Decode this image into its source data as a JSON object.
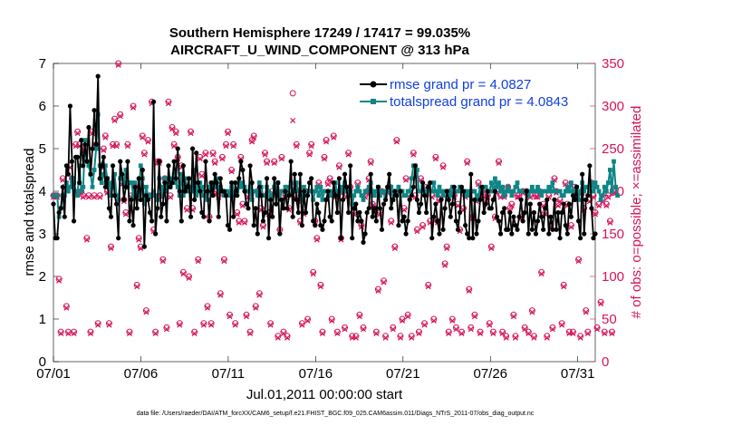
{
  "chart_data": {
    "type": "line",
    "title_line1": "Southern Hemisphere 17249 / 17417 = 99.035%",
    "title_line2": "AIRCRAFT_U_WIND_COMPONENT @ 313 hPa",
    "xlabel": "Jul.01,2011 00:00:00 start",
    "ylabel_left": "rmse and totalspread",
    "ylabel_right": "# of obs: o=possible; ×=assimilated",
    "xlim": [
      1,
      32
    ],
    "ylim_left": [
      0,
      7
    ],
    "ylim_right": [
      0,
      350
    ],
    "x_ticks": [
      1,
      6,
      11,
      16,
      21,
      26,
      31
    ],
    "x_tick_labels": [
      "07/01",
      "07/06",
      "07/11",
      "07/16",
      "07/21",
      "07/26",
      "07/31"
    ],
    "y_left_ticks": [
      "0",
      "1",
      "2",
      "3",
      "4",
      "5",
      "6",
      "7"
    ],
    "y_right_ticks": [
      "0",
      "50",
      "100",
      "150",
      "200",
      "250",
      "300",
      "350"
    ],
    "footnote": "data file: /Users/raeder/DAI/ATM_forcXX/CAM6_setup/f.e21.FHIST_BGC.f09_025.CAM6assim.011/Diags_NTrS_2011-07/obs_diag_output.nc",
    "colors": {
      "rmse": "#000000",
      "spread": "#0f8585",
      "obs": "#d6145a",
      "legend_text": "#1240e0"
    },
    "series": [
      {
        "name": "rmse",
        "legend": "rmse grand pr = 4.0827",
        "axis": "left",
        "values": [
          3.7,
          2.9,
          2.9,
          3.5,
          3.6,
          4.1,
          3.4,
          4.6,
          4.4,
          6.0,
          4.7,
          3.3,
          4.8,
          4.8,
          4.2,
          5.2,
          4.6,
          5.1,
          4.7,
          5.5,
          4.4,
          5.0,
          5.9,
          5.1,
          6.7,
          4.3,
          4.6,
          4.8,
          4.1,
          4.3,
          3.6,
          3.4,
          4.6,
          3.9,
          3.7,
          2.9,
          4.7,
          4.4,
          3.8,
          4.1,
          4.7,
          3.3,
          3.8,
          3.2,
          4.1,
          3.6,
          4.3,
          3.8,
          4.5,
          2.7,
          3.9,
          3.8,
          3.5,
          3.3,
          6.1,
          3.0,
          3.6,
          4.7,
          3.4,
          3.7,
          4.2,
          3.3,
          4.6,
          4.1,
          4.2,
          4.7,
          4.3,
          5.0,
          4.0,
          3.3,
          4.6,
          4.0,
          4.1,
          4.3,
          3.4,
          5.0,
          3.8,
          4.9,
          4.2,
          4.0,
          3.5,
          3.4,
          4.7,
          4.0,
          3.3,
          4.2,
          3.9,
          4.4,
          4.2,
          3.4,
          4.3,
          4.0,
          4.0,
          3.9,
          3.2,
          3.1,
          4.2,
          3.4,
          4.2,
          3.9,
          4.3,
          4.7,
          4.5,
          4.0,
          3.7,
          3.6,
          4.6,
          4.2,
          3.2,
          3.6,
          3.0,
          4.1,
          3.9,
          3.3,
          3.5,
          4.3,
          2.9,
          3.8,
          3.4,
          4.3,
          3.7,
          4.2,
          3.0,
          3.8,
          3.6,
          4.0,
          3.6,
          3.9,
          4.7,
          3.4,
          4.4,
          3.8,
          3.5,
          4.4,
          3.2,
          4.0,
          3.5,
          3.9,
          4.2,
          4.3,
          3.3,
          3.2,
          3.7,
          3.5,
          3.2,
          3.1,
          3.3,
          3.8,
          4.0,
          3.4,
          3.3,
          4.2,
          3.9,
          3.5,
          4.3,
          2.9,
          3.8,
          4.4,
          4.1,
          3.5,
          4.6,
          2.9,
          3.6,
          3.7,
          3.3,
          3.5,
          3.3,
          2.8,
          3.0,
          3.5,
          3.6,
          4.4,
          3.4,
          3.6,
          3.3,
          4.1,
          3.6,
          3.1,
          3.7,
          3.8,
          4.1,
          4.4,
          3.6,
          3.8,
          4.0,
          3.9,
          3.2,
          4.0,
          3.3,
          3.4,
          3.0,
          3.3,
          3.8,
          3.9,
          4.1,
          4.6,
          3.8,
          3.5,
          3.7,
          4.2,
          3.9,
          3.5,
          4.1,
          4.2,
          2.9,
          3.4,
          3.7,
          3.3,
          3.0,
          3.8,
          3.1,
          3.6,
          4.0,
          3.8,
          3.4,
          3.7,
          4.1,
          3.3,
          3.1,
          3.5,
          4.1,
          4.0,
          3.2,
          3.0,
          2.9,
          4.4,
          2.9,
          3.8,
          3.0,
          3.3,
          3.8,
          4.1,
          3.5,
          3.7,
          4.0,
          3.6,
          3.6,
          3.8,
          4.0,
          3.4,
          3.3,
          3.0,
          3.5,
          3.6,
          3.1,
          3.1,
          3.5,
          3.0,
          3.4,
          3.2,
          3.1,
          3.4,
          3.8,
          3.3,
          3.5,
          4.0,
          3.0,
          3.7,
          3.1,
          3.5,
          3.0,
          3.3,
          3.7,
          3.4,
          3.1,
          3.6,
          3.8,
          3.0,
          3.4,
          3.1,
          3.8,
          3.1,
          3.5,
          2.9,
          3.5,
          3.7,
          3.2,
          3.0,
          3.7,
          3.4,
          3.9,
          3.8,
          4.1,
          3.3,
          2.9,
          4.4,
          3.0,
          3.8,
          3.9,
          4.6,
          3.6,
          2.9,
          3.0
        ]
      },
      {
        "name": "totalspread",
        "legend": "totalspread grand pr = 4.0843",
        "axis": "left",
        "values": [
          3.9,
          3.9,
          3.9,
          3.4,
          3.6,
          3.9,
          3.9,
          4.2,
          4.0,
          4.1,
          4.3,
          4.2,
          4.0,
          3.9,
          4.6,
          4.0,
          4.1,
          5.2,
          4.7,
          4.6,
          4.4,
          4.1,
          4.5,
          5.0,
          5.8,
          4.6,
          4.2,
          4.4,
          4.6,
          4.3,
          4.2,
          3.9,
          4.1,
          4.4,
          3.9,
          3.8,
          4.3,
          4.3,
          4.2,
          4.5,
          4.1,
          4.2,
          4.2,
          3.9,
          4.2,
          3.9,
          3.9,
          4.6,
          4.3,
          3.7,
          4.1,
          3.9,
          3.9,
          3.9,
          4.0,
          3.9,
          3.8,
          4.3,
          4.1,
          3.9,
          4.3,
          4.0,
          4.3,
          4.1,
          4.3,
          4.4,
          4.2,
          4.1,
          3.9,
          4.4,
          3.9,
          4.3,
          4.0,
          4.1,
          4.1,
          4.0,
          4.5,
          3.9,
          4.2,
          4.2,
          3.9,
          4.1,
          3.9,
          3.8,
          4.1,
          4.0,
          4.2,
          4.1,
          4.3,
          4.0,
          4.1,
          4.0,
          3.9,
          3.9,
          4.0,
          3.9,
          4.1,
          3.9,
          4.0,
          4.0,
          4.2,
          4.1,
          4.2,
          4.1,
          4.0,
          4.0,
          4.1,
          3.8,
          4.0,
          4.0,
          3.9,
          4.2,
          4.1,
          3.9,
          3.9,
          4.1,
          4.0,
          3.9,
          3.9,
          4.1,
          4.0,
          4.2,
          3.8,
          4.0,
          4.0,
          4.1,
          3.9,
          4.1,
          4.2,
          4.0,
          4.0,
          4.2,
          4.0,
          3.9,
          3.8,
          4.1,
          3.9,
          4.0,
          4.0,
          4.0,
          3.8,
          4.0,
          4.1,
          3.9,
          4.1,
          3.8,
          4.0,
          4.0,
          4.0,
          3.9,
          4.0,
          4.0,
          4.2,
          3.9,
          4.0,
          4.1,
          4.0,
          4.2,
          4.0,
          3.9,
          4.0,
          3.7,
          3.9,
          4.0,
          4.1,
          4.0,
          3.9,
          3.8,
          4.0,
          4.0,
          4.1,
          4.2,
          4.0,
          3.9,
          4.0,
          4.1,
          3.9,
          4.0,
          4.0,
          3.9,
          4.0,
          4.0,
          4.1,
          3.8,
          4.0,
          3.9,
          4.1,
          4.0,
          4.0,
          3.9,
          3.9,
          4.0,
          4.0,
          4.3,
          4.6,
          4.6,
          4.5,
          4.0,
          4.0,
          4.1,
          4.0,
          3.9,
          4.1,
          4.0,
          4.0,
          4.2,
          4.0,
          3.9,
          4.1,
          4.0,
          3.9,
          4.0,
          4.0,
          4.0,
          3.9,
          4.1,
          4.0,
          4.0,
          4.0,
          4.1,
          4.0,
          4.0,
          3.9,
          4.0,
          3.9,
          4.0,
          4.0,
          4.0,
          3.8,
          3.9,
          4.1,
          4.0,
          4.1,
          4.1,
          4.0,
          4.0,
          4.2,
          4.0,
          4.3,
          4.1,
          4.2,
          4.0,
          4.1,
          3.9,
          4.0,
          4.1,
          4.0,
          3.9,
          4.0,
          4.1,
          4.2,
          4.0,
          4.0,
          4.0,
          4.0,
          4.0,
          3.9,
          4.0,
          4.1,
          4.0,
          4.0,
          4.1,
          4.0,
          3.9,
          4.0,
          4.0,
          4.0,
          4.1,
          4.0,
          4.2,
          4.0,
          4.0,
          4.0,
          4.0,
          3.9,
          3.9,
          4.0,
          4.1,
          4.0,
          4.2,
          4.0,
          4.0,
          4.1,
          3.8,
          4.0,
          4.2,
          4.0,
          4.1,
          4.1,
          4.0,
          4.2,
          4.0,
          4.2,
          4.1,
          4.0,
          3.8,
          3.9,
          4.1,
          4.0,
          4.2,
          4.5,
          4.0,
          4.7,
          4.1,
          3.9
        ]
      },
      {
        "name": "obs_possible",
        "axis": "right",
        "marker": "circle",
        "values": [
          195,
          195,
          195,
          97,
          35,
          215,
          205,
          65,
          35,
          230,
          215,
          35,
          255,
          270,
          255,
          200,
          195,
          250,
          145,
          195,
          35,
          270,
          195,
          255,
          45,
          195,
          230,
          250,
          265,
          200,
          45,
          135,
          255,
          285,
          255,
          350,
          290,
          210,
          190,
          175,
          255,
          35,
          195,
          300,
          205,
          90,
          145,
          135,
          265,
          245,
          60,
          260,
          195,
          305,
          155,
          35,
          235,
          235,
          195,
          120,
          215,
          40,
          305,
          195,
          275,
          255,
          270,
          240,
          45,
          230,
          105,
          205,
          180,
          100,
          270,
          180,
          35,
          200,
          120,
          240,
          220,
          45,
          245,
          65,
          170,
          45,
          245,
          235,
          200,
          195,
          80,
          240,
          120,
          255,
          270,
          55,
          225,
          255,
          45,
          175,
          165,
          240,
          185,
          165,
          55,
          195,
          35,
          260,
          265,
          65,
          200,
          80,
          180,
          160,
          245,
          235,
          175,
          45,
          200,
          235,
          205,
          30,
          155,
          240,
          35,
          195,
          30,
          180,
          200,
          315,
          195,
          255,
          190,
          165,
          45,
          175,
          200,
          50,
          245,
          255,
          105,
          165,
          145,
          210,
          90,
          35,
          240,
          260,
          210,
          215,
          50,
          265,
          195,
          35,
          230,
          145,
          200,
          40,
          195,
          245,
          205,
          30,
          175,
          30,
          210,
          55,
          160,
          40,
          195,
          200,
          215,
          235,
          185,
          180,
          35,
          85,
          175,
          200,
          95,
          30,
          200,
          205,
          165,
          40,
          135,
          260,
          200,
          30,
          50,
          180,
          215,
          55,
          195,
          30,
          245,
          195,
          155,
          35,
          215,
          160,
          45,
          205,
          90,
          165,
          195,
          50,
          240,
          165,
          190,
          195,
          230,
          115,
          135,
          35,
          200,
          50,
          195,
          40,
          185,
          155,
          35,
          180,
          195,
          235,
          85,
          40,
          170,
          55,
          190,
          210,
          35,
          200,
          195,
          190,
          195,
          45,
          135,
          35,
          170,
          200,
          235,
          195,
          35,
          195,
          30,
          205,
          180,
          185,
          55,
          30,
          195,
          195,
          170,
          200,
          40,
          200,
          35,
          195,
          60,
          30,
          195,
          195,
          200,
          105,
          185,
          175,
          30,
          195,
          160,
          40,
          215,
          200,
          185,
          190,
          45,
          90,
          210,
          185,
          35,
          160,
          35,
          205,
          195,
          120,
          30,
          200,
          180,
          60,
          35,
          190,
          210,
          195,
          175,
          40,
          185,
          70,
          190,
          35,
          185,
          195,
          165,
          35,
          200
        ]
      },
      {
        "name": "obs_assimilated",
        "axis": "right",
        "marker": "x",
        "values": [
          193,
          193,
          193,
          95,
          33,
          213,
          203,
          63,
          33,
          228,
          213,
          33,
          253,
          268,
          253,
          198,
          193,
          248,
          143,
          193,
          33,
          268,
          193,
          253,
          43,
          193,
          228,
          248,
          263,
          198,
          43,
          133,
          253,
          283,
          253,
          348,
          288,
          208,
          188,
          173,
          253,
          33,
          193,
          298,
          203,
          88,
          143,
          133,
          263,
          243,
          58,
          258,
          193,
          303,
          153,
          33,
          233,
          233,
          193,
          118,
          213,
          38,
          303,
          193,
          273,
          253,
          268,
          238,
          43,
          228,
          103,
          203,
          178,
          98,
          268,
          178,
          33,
          198,
          118,
          238,
          218,
          43,
          243,
          63,
          168,
          43,
          243,
          233,
          198,
          193,
          78,
          238,
          118,
          253,
          268,
          53,
          223,
          253,
          43,
          173,
          163,
          238,
          183,
          163,
          53,
          193,
          33,
          258,
          263,
          63,
          198,
          78,
          178,
          158,
          243,
          233,
          173,
          43,
          198,
          233,
          203,
          28,
          153,
          238,
          33,
          193,
          28,
          178,
          198,
          283,
          193,
          253,
          188,
          163,
          43,
          173,
          198,
          48,
          243,
          253,
          103,
          163,
          143,
          208,
          88,
          33,
          238,
          258,
          208,
          213,
          48,
          263,
          193,
          33,
          228,
          143,
          198,
          38,
          193,
          243,
          203,
          28,
          173,
          28,
          208,
          53,
          158,
          38,
          193,
          198,
          213,
          233,
          183,
          178,
          33,
          83,
          173,
          198,
          93,
          28,
          198,
          203,
          163,
          38,
          133,
          258,
          198,
          28,
          48,
          178,
          213,
          53,
          193,
          28,
          243,
          193,
          153,
          33,
          213,
          158,
          43,
          203,
          88,
          163,
          193,
          48,
          238,
          163,
          188,
          193,
          228,
          113,
          133,
          33,
          198,
          48,
          193,
          38,
          183,
          153,
          33,
          178,
          193,
          233,
          83,
          38,
          168,
          53,
          188,
          208,
          33,
          198,
          193,
          188,
          193,
          43,
          133,
          33,
          168,
          198,
          233,
          193,
          33,
          193,
          28,
          203,
          178,
          183,
          53,
          28,
          193,
          193,
          168,
          198,
          38,
          198,
          33,
          193,
          58,
          28,
          193,
          193,
          198,
          103,
          183,
          173,
          28,
          193,
          158,
          38,
          213,
          198,
          183,
          188,
          43,
          88,
          208,
          183,
          33,
          158,
          33,
          203,
          193,
          118,
          28,
          198,
          178,
          58,
          33,
          188,
          208,
          193,
          173,
          38,
          183,
          68,
          188,
          33,
          183,
          193,
          163,
          33,
          198
        ]
      }
    ]
  }
}
